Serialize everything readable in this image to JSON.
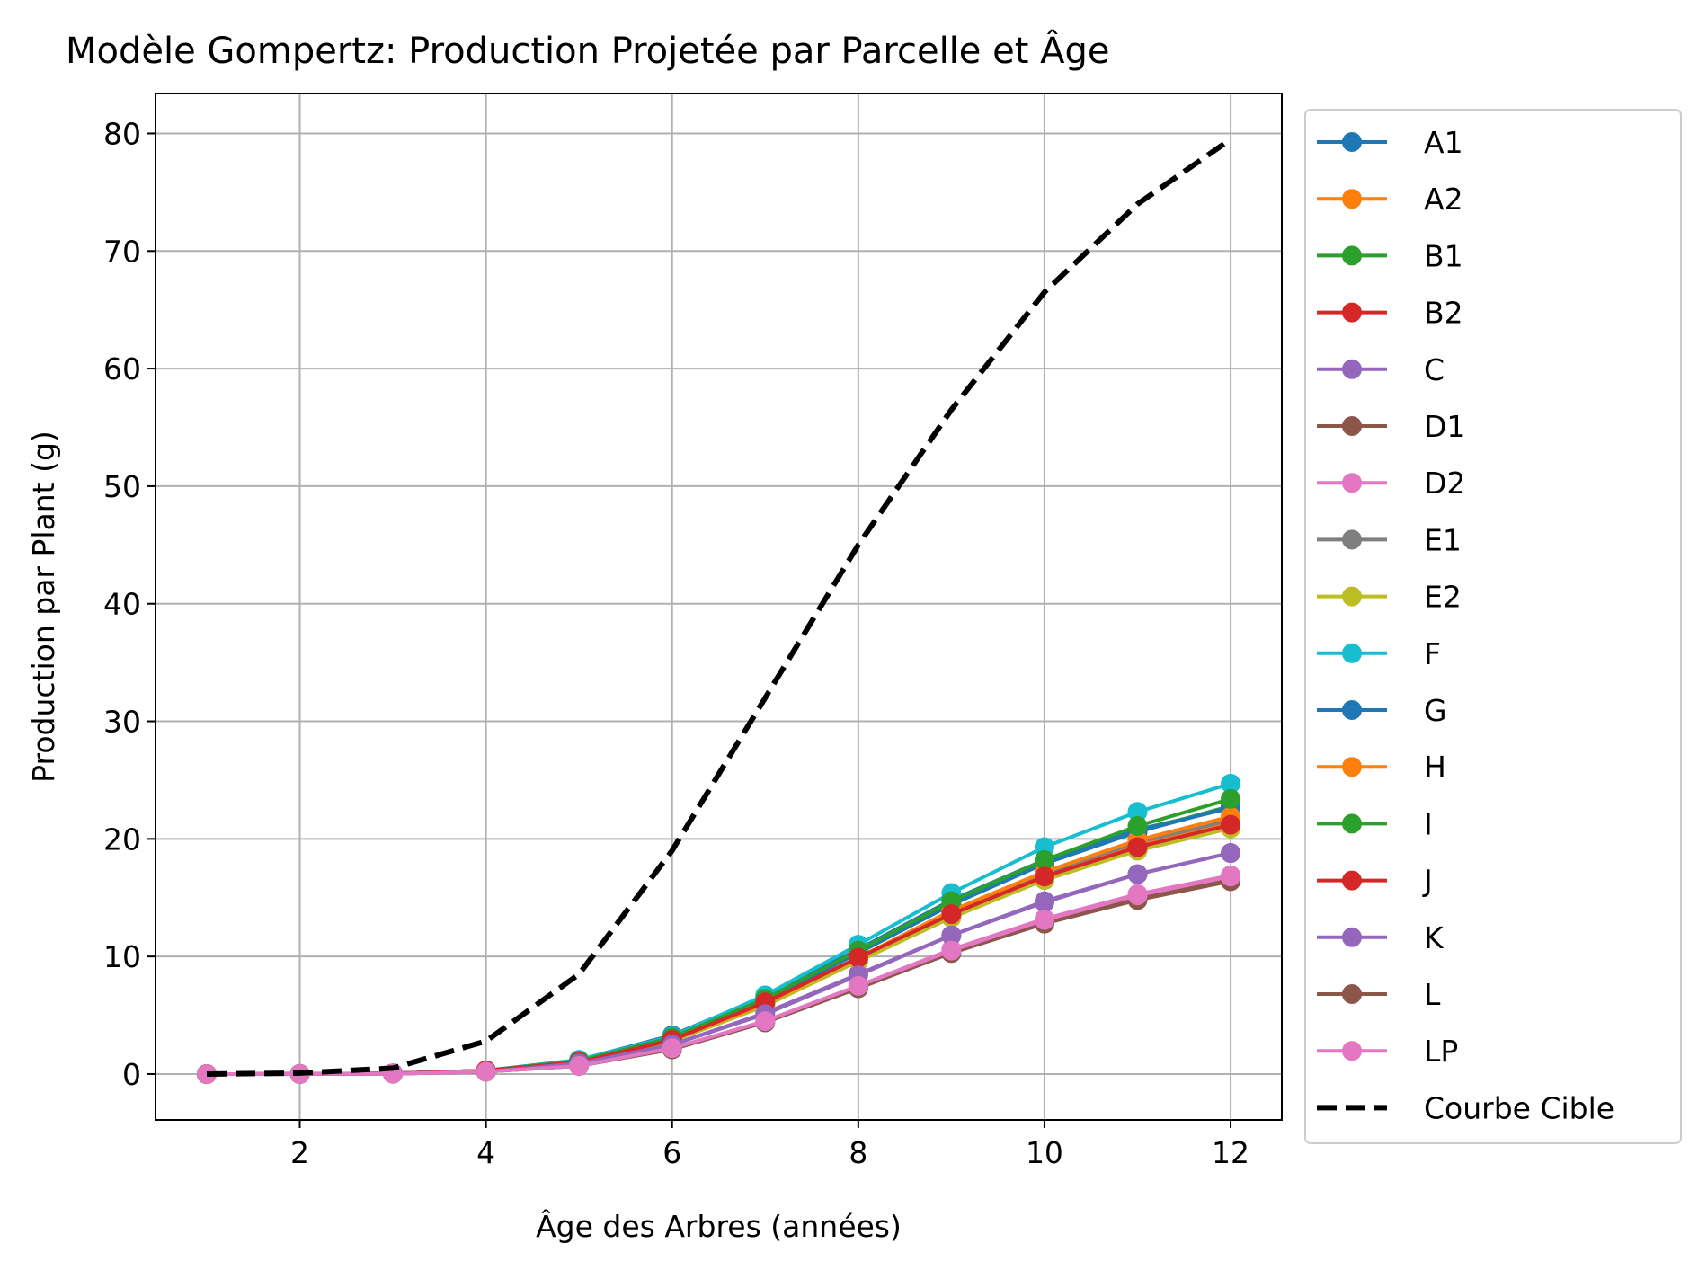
{
  "chart_data": {
    "type": "line",
    "title": "Modèle Gompertz: Production Projetée par Parcelle et Âge",
    "xlabel": "Âge des Arbres (années)",
    "ylabel": "Production par Plant (g)",
    "xlim": [
      0.45,
      12.55
    ],
    "ylim": [
      -3.9,
      83.4
    ],
    "xticks": [
      2,
      4,
      6,
      8,
      10,
      12
    ],
    "yticks": [
      0,
      10,
      20,
      30,
      40,
      50,
      60,
      70,
      80
    ],
    "grid": true,
    "legend_position": "outside-right",
    "x": [
      1,
      2,
      3,
      4,
      5,
      6,
      7,
      8,
      9,
      10,
      11,
      12
    ],
    "series": [
      {
        "name": "A1",
        "color": "#1f77b4",
        "marker": "circle",
        "values": [
          0.0,
          0.01,
          0.05,
          0.3,
          1.2,
          3.3,
          6.6,
          10.6,
          14.8,
          18.2,
          20.8,
          22.6
        ]
      },
      {
        "name": "A2",
        "color": "#ff7f0e",
        "marker": "circle",
        "values": [
          0.0,
          0.01,
          0.05,
          0.3,
          1.0,
          2.9,
          6.0,
          9.8,
          13.7,
          16.9,
          19.5,
          21.3
        ]
      },
      {
        "name": "B1",
        "color": "#2ca02c",
        "marker": "circle",
        "values": [
          0.0,
          0.01,
          0.05,
          0.3,
          1.1,
          3.1,
          6.3,
          10.3,
          14.4,
          17.9,
          20.6,
          22.8
        ]
      },
      {
        "name": "B2",
        "color": "#d62728",
        "marker": "circle",
        "values": [
          0.0,
          0.01,
          0.05,
          0.3,
          1.0,
          2.8,
          5.9,
          9.7,
          13.5,
          16.7,
          19.2,
          21.0
        ]
      },
      {
        "name": "C",
        "color": "#9467bd",
        "marker": "circle",
        "values": [
          0.0,
          0.01,
          0.04,
          0.2,
          0.9,
          2.5,
          5.2,
          8.5,
          11.8,
          14.7,
          17.0,
          18.8
        ]
      },
      {
        "name": "D1",
        "color": "#8c564b",
        "marker": "circle",
        "values": [
          0.0,
          0.01,
          0.03,
          0.2,
          0.7,
          2.1,
          4.4,
          7.3,
          10.3,
          12.8,
          14.9,
          16.5
        ]
      },
      {
        "name": "D2",
        "color": "#e377c2",
        "marker": "circle",
        "values": [
          0.0,
          0.01,
          0.03,
          0.2,
          0.7,
          2.2,
          4.5,
          7.5,
          10.6,
          13.2,
          15.3,
          16.9
        ]
      },
      {
        "name": "E1",
        "color": "#7f7f7f",
        "marker": "circle",
        "values": [
          0.0,
          0.01,
          0.05,
          0.3,
          1.0,
          2.9,
          6.0,
          9.9,
          13.8,
          17.1,
          19.7,
          21.6
        ]
      },
      {
        "name": "E2",
        "color": "#bcbd22",
        "marker": "circle",
        "values": [
          0.0,
          0.01,
          0.04,
          0.3,
          1.0,
          2.8,
          5.8,
          9.6,
          13.3,
          16.5,
          19.0,
          20.9
        ]
      },
      {
        "name": "F",
        "color": "#17becf",
        "marker": "circle",
        "values": [
          0.0,
          0.01,
          0.05,
          0.3,
          1.2,
          3.2,
          6.7,
          11.0,
          15.4,
          19.3,
          22.3,
          24.7
        ]
      },
      {
        "name": "G",
        "color": "#1f77b4",
        "marker": "circle",
        "values": [
          0.0,
          0.01,
          0.05,
          0.3,
          1.1,
          3.1,
          6.3,
          10.3,
          14.4,
          17.9,
          20.6,
          22.7
        ]
      },
      {
        "name": "H",
        "color": "#ff7f0e",
        "marker": "circle",
        "values": [
          0.0,
          0.01,
          0.05,
          0.3,
          1.0,
          2.9,
          6.0,
          9.9,
          13.9,
          17.2,
          19.9,
          21.9
        ]
      },
      {
        "name": "I",
        "color": "#2ca02c",
        "marker": "circle",
        "values": [
          0.0,
          0.01,
          0.05,
          0.3,
          1.1,
          3.1,
          6.4,
          10.5,
          14.7,
          18.2,
          21.1,
          23.4
        ]
      },
      {
        "name": "J",
        "color": "#d62728",
        "marker": "circle",
        "values": [
          0.0,
          0.01,
          0.05,
          0.3,
          1.0,
          2.9,
          6.1,
          9.9,
          13.6,
          16.8,
          19.3,
          21.2
        ]
      },
      {
        "name": "K",
        "color": "#9467bd",
        "marker": "circle",
        "values": [
          0.0,
          0.01,
          0.04,
          0.2,
          0.9,
          2.5,
          5.1,
          8.4,
          11.8,
          14.6,
          17.0,
          18.8
        ]
      },
      {
        "name": "L",
        "color": "#8c564b",
        "marker": "circle",
        "values": [
          0.0,
          0.01,
          0.03,
          0.2,
          0.7,
          2.1,
          4.4,
          7.3,
          10.3,
          12.8,
          14.8,
          16.4
        ]
      },
      {
        "name": "LP",
        "color": "#e377c2",
        "marker": "circle",
        "values": [
          0.0,
          0.01,
          0.03,
          0.2,
          0.7,
          2.2,
          4.5,
          7.5,
          10.5,
          13.1,
          15.2,
          16.8
        ]
      },
      {
        "name": "Courbe Cible",
        "color": "#000000",
        "marker": "none",
        "dashed": true,
        "values": [
          0.0,
          0.08,
          0.5,
          2.8,
          8.5,
          19.0,
          32.0,
          45.0,
          56.5,
          66.5,
          74.0,
          79.5
        ]
      }
    ]
  }
}
